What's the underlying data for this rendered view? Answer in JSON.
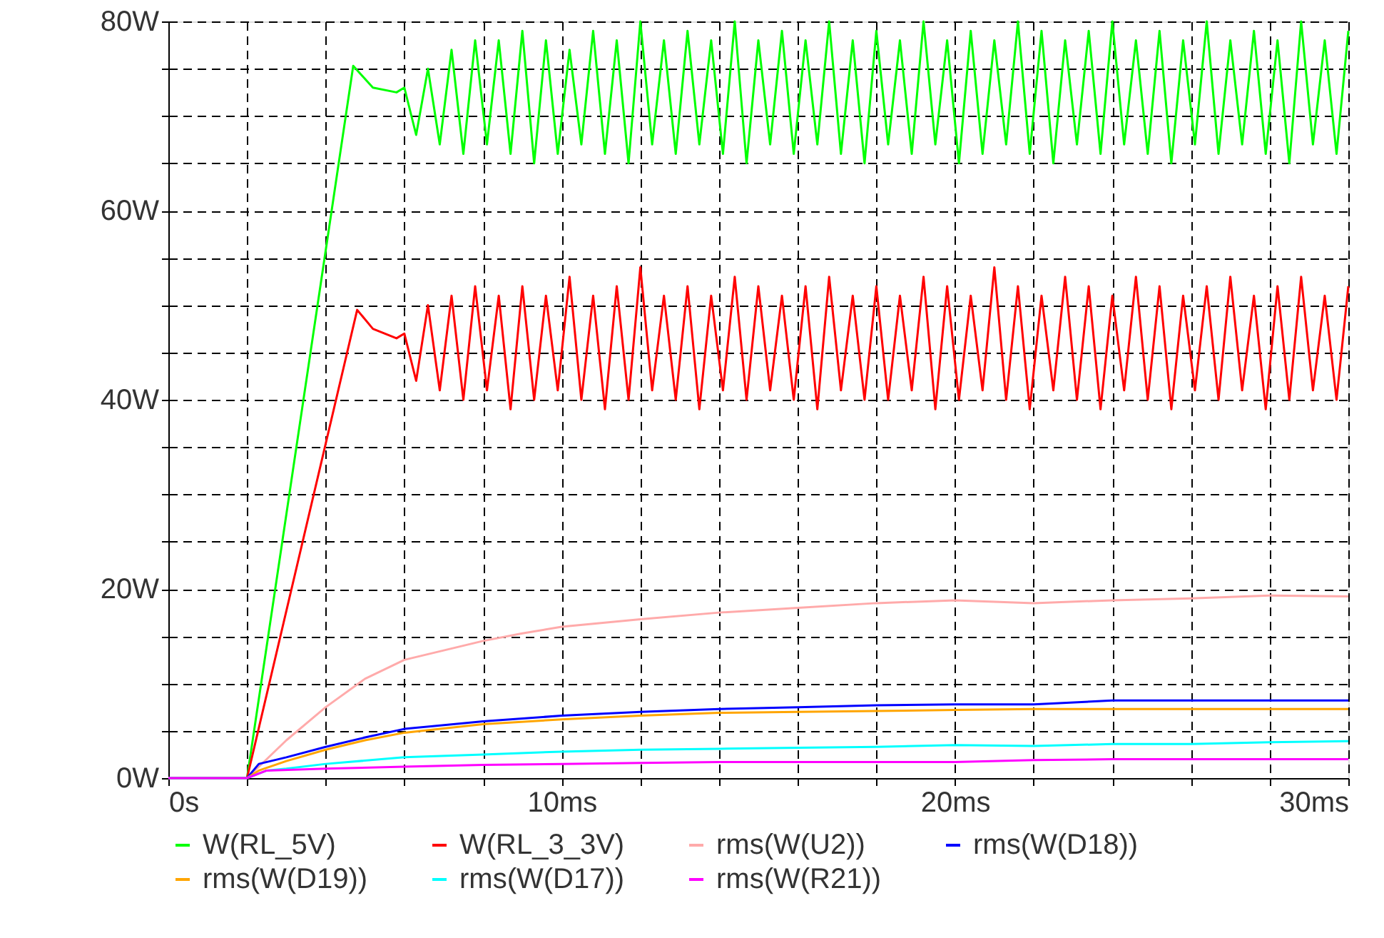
{
  "chart_data": {
    "type": "line",
    "xlim": [
      0,
      30
    ],
    "xticks": [
      {
        "value": 0,
        "label": "0s"
      },
      {
        "value": 2,
        "label": null
      },
      {
        "value": 4,
        "label": null
      },
      {
        "value": 6,
        "label": null
      },
      {
        "value": 8,
        "label": null
      },
      {
        "value": 10,
        "label": "10ms"
      },
      {
        "value": 12,
        "label": null
      },
      {
        "value": 14,
        "label": null
      },
      {
        "value": 16,
        "label": null
      },
      {
        "value": 18,
        "label": null
      },
      {
        "value": 20,
        "label": "20ms"
      },
      {
        "value": 22,
        "label": null
      },
      {
        "value": 24,
        "label": null
      },
      {
        "value": 26,
        "label": null
      },
      {
        "value": 28,
        "label": null
      },
      {
        "value": 30,
        "label": "30ms"
      }
    ],
    "ylim": [
      0,
      80
    ],
    "yticks": [
      {
        "value": 0,
        "label": "0W"
      },
      {
        "value": 5,
        "label": null
      },
      {
        "value": 10,
        "label": null
      },
      {
        "value": 15,
        "label": null
      },
      {
        "value": 20,
        "label": "20W"
      },
      {
        "value": 25,
        "label": null
      },
      {
        "value": 30,
        "label": null
      },
      {
        "value": 35,
        "label": null
      },
      {
        "value": 40,
        "label": "40W"
      },
      {
        "value": 45,
        "label": null
      },
      {
        "value": 50,
        "label": null
      },
      {
        "value": 55,
        "label": null
      },
      {
        "value": 60,
        "label": "60W"
      },
      {
        "value": 65,
        "label": null
      },
      {
        "value": 70,
        "label": null
      },
      {
        "value": 75,
        "label": null
      },
      {
        "value": 80,
        "label": "80W"
      }
    ],
    "grid": true,
    "line_style": "solid",
    "legend": "bottom",
    "series": [
      {
        "name": "W(RL_5V)",
        "color": "#00ff00",
        "x": [
          0,
          2,
          4.7,
          5.2,
          5.8,
          6.0,
          6.3,
          6.6,
          6.9,
          7.2,
          7.5,
          7.8,
          8.1,
          8.4,
          8.7,
          9.0,
          9.3,
          9.6,
          9.9,
          10.2,
          10.5,
          10.8,
          11.1,
          11.4,
          11.7,
          12.0,
          12.3,
          12.6,
          12.9,
          13.2,
          13.5,
          13.8,
          14.1,
          14.4,
          14.7,
          15.0,
          15.3,
          15.6,
          15.9,
          16.2,
          16.5,
          16.8,
          17.1,
          17.4,
          17.7,
          18.0,
          18.3,
          18.6,
          18.9,
          19.2,
          19.5,
          19.8,
          20.1,
          20.4,
          20.7,
          21.0,
          21.3,
          21.6,
          21.9,
          22.2,
          22.5,
          22.8,
          23.1,
          23.4,
          23.7,
          24.0,
          24.3,
          24.6,
          24.9,
          25.2,
          25.5,
          25.8,
          26.1,
          26.4,
          26.7,
          27.0,
          27.3,
          27.6,
          27.9,
          28.2,
          28.5,
          28.8,
          29.1,
          29.4,
          29.7,
          30.0
        ],
        "values": [
          0,
          0,
          75.3,
          73,
          72.5,
          73,
          68,
          75,
          67,
          77,
          66,
          78,
          67,
          78,
          66,
          79,
          65,
          78,
          66,
          77,
          67,
          79,
          66,
          78,
          65,
          80,
          67,
          78,
          66,
          79,
          67,
          78,
          66,
          80,
          65,
          78,
          67,
          79,
          66,
          78,
          67,
          80,
          66,
          78,
          65,
          79,
          67,
          78,
          66,
          80,
          67,
          78,
          65,
          79,
          66,
          78,
          67,
          80,
          66,
          79,
          65,
          78,
          67,
          79,
          66,
          80,
          67,
          78,
          66,
          79,
          65,
          78,
          67,
          80,
          66,
          78,
          67,
          79,
          66,
          78,
          65,
          80,
          67,
          78,
          66,
          79
        ]
      },
      {
        "name": "W(RL_3_3V)",
        "color": "#ff0000",
        "x": [
          0,
          2,
          4.8,
          5.2,
          5.8,
          6.0,
          6.3,
          6.6,
          6.9,
          7.2,
          7.5,
          7.8,
          8.1,
          8.4,
          8.7,
          9.0,
          9.3,
          9.6,
          9.9,
          10.2,
          10.5,
          10.8,
          11.1,
          11.4,
          11.7,
          12.0,
          12.3,
          12.6,
          12.9,
          13.2,
          13.5,
          13.8,
          14.1,
          14.4,
          14.7,
          15.0,
          15.3,
          15.6,
          15.9,
          16.2,
          16.5,
          16.8,
          17.1,
          17.4,
          17.7,
          18.0,
          18.3,
          18.6,
          18.9,
          19.2,
          19.5,
          19.8,
          20.1,
          20.4,
          20.7,
          21.0,
          21.3,
          21.6,
          21.9,
          22.2,
          22.5,
          22.8,
          23.1,
          23.4,
          23.7,
          24.0,
          24.3,
          24.6,
          24.9,
          25.2,
          25.5,
          25.8,
          26.1,
          26.4,
          26.7,
          27.0,
          27.3,
          27.6,
          27.9,
          28.2,
          28.5,
          28.8,
          29.1,
          29.4,
          29.7,
          30.0
        ],
        "values": [
          0,
          0,
          49.5,
          47.5,
          46.5,
          47,
          42,
          50,
          41,
          51,
          40,
          52,
          41,
          51,
          39,
          52,
          40,
          51,
          41,
          53,
          40,
          51,
          39,
          52,
          40,
          54,
          41,
          51,
          40,
          52,
          39,
          51,
          41,
          53,
          40,
          52,
          41,
          51,
          40,
          52,
          39,
          53,
          41,
          51,
          40,
          52,
          40,
          51,
          41,
          53,
          39,
          52,
          40,
          51,
          41,
          54,
          40,
          52,
          39,
          51,
          41,
          53,
          40,
          52,
          39,
          51,
          41,
          53,
          40,
          52,
          39,
          51,
          41,
          52,
          40,
          53,
          41,
          51,
          39,
          52,
          40,
          53,
          41,
          51,
          40,
          52
        ]
      },
      {
        "name": "rms(W(U2))",
        "color": "#ffaaaa",
        "x": [
          0,
          2,
          3,
          4,
          5,
          6,
          7,
          8,
          9,
          10,
          12,
          14,
          16,
          18,
          20,
          22,
          24,
          26,
          28,
          30
        ],
        "values": [
          0,
          0,
          4,
          7.5,
          10.5,
          12.5,
          13.5,
          14.5,
          15.3,
          16,
          16.8,
          17.5,
          18,
          18.5,
          18.8,
          18.5,
          18.8,
          19,
          19.3,
          19.2
        ]
      },
      {
        "name": "rms(W(D18))",
        "color": "#0000ff",
        "x": [
          0,
          2,
          2.3,
          3,
          4,
          5,
          6,
          8,
          10,
          12,
          14,
          16,
          18,
          20,
          22,
          24,
          26,
          28,
          30
        ],
        "values": [
          0,
          0,
          1.5,
          2.2,
          3.3,
          4.3,
          5.2,
          6,
          6.6,
          7,
          7.3,
          7.5,
          7.7,
          7.8,
          7.8,
          8.2,
          8.2,
          8.2,
          8.2
        ]
      },
      {
        "name": "rms(W(D19))",
        "color": "#ffa500",
        "x": [
          0,
          2,
          2.3,
          3,
          4,
          5,
          6,
          8,
          10,
          12,
          14,
          16,
          18,
          20,
          22,
          24,
          26,
          28,
          30
        ],
        "values": [
          0,
          0,
          0.8,
          1.8,
          3,
          4,
          4.8,
          5.7,
          6.2,
          6.6,
          6.9,
          7,
          7.1,
          7.2,
          7.3,
          7.3,
          7.3,
          7.3,
          7.3
        ]
      },
      {
        "name": "rms(W(D17))",
        "color": "#00ffff",
        "x": [
          0,
          2,
          2.5,
          3,
          4,
          6,
          8,
          10,
          12,
          14,
          16,
          18,
          20,
          22,
          24,
          26,
          28,
          30
        ],
        "values": [
          0,
          0,
          0.8,
          1,
          1.5,
          2.2,
          2.5,
          2.8,
          3,
          3.1,
          3.2,
          3.3,
          3.5,
          3.4,
          3.6,
          3.6,
          3.8,
          3.9
        ]
      },
      {
        "name": "rms(W(R21))",
        "color": "#ff00ff",
        "x": [
          0,
          2,
          2.5,
          4,
          6,
          8,
          10,
          12,
          14,
          16,
          18,
          20,
          22,
          24,
          26,
          28,
          30
        ],
        "values": [
          0,
          0,
          0.8,
          1,
          1.2,
          1.4,
          1.5,
          1.6,
          1.7,
          1.7,
          1.7,
          1.7,
          1.9,
          2,
          2,
          2,
          2
        ]
      }
    ]
  }
}
